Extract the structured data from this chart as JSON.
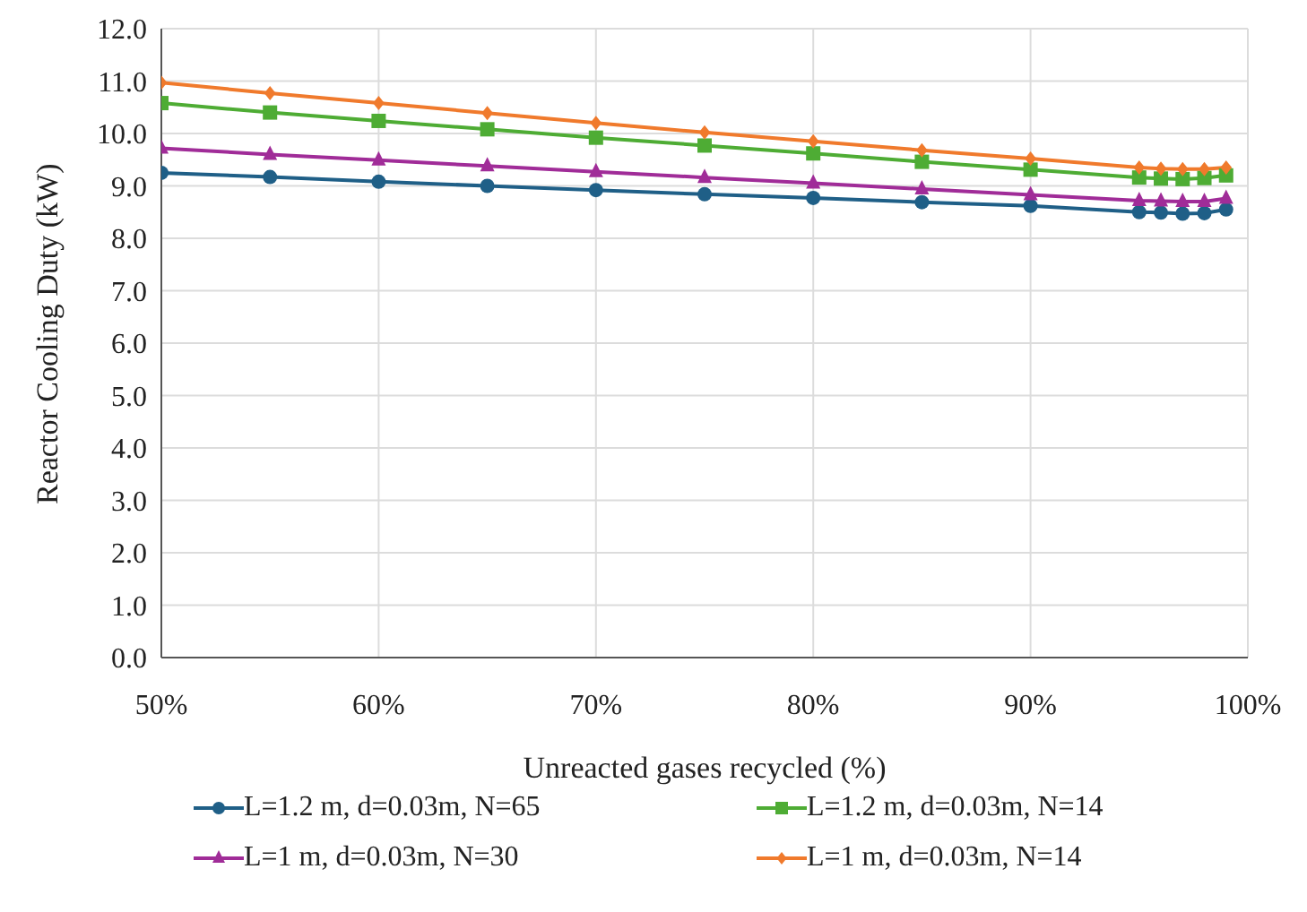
{
  "chart_data": {
    "type": "line",
    "xlabel": "Unreacted gases recycled (%)",
    "ylabel": "Reactor Cooling Duty (kW)",
    "x": [
      50,
      55,
      60,
      65,
      70,
      75,
      80,
      85,
      90,
      95,
      96,
      97,
      98,
      99
    ],
    "series": [
      {
        "name": "L=1.2 m, d=0.03m, N=65",
        "color": "#1f5f87",
        "marker": "circle",
        "values": [
          9.25,
          9.17,
          9.08,
          9.0,
          8.92,
          8.84,
          8.77,
          8.69,
          8.62,
          8.5,
          8.49,
          8.47,
          8.48,
          8.55
        ]
      },
      {
        "name": "L=1.2 m, d=0.03m, N=14",
        "color": "#4eac34",
        "marker": "square",
        "values": [
          10.58,
          10.4,
          10.24,
          10.08,
          9.92,
          9.77,
          9.62,
          9.46,
          9.31,
          9.16,
          9.14,
          9.13,
          9.15,
          9.2
        ]
      },
      {
        "name": "L=1 m, d=0.03m, N=30",
        "color": "#a02c98",
        "marker": "triangle",
        "values": [
          9.72,
          9.6,
          9.49,
          9.38,
          9.27,
          9.16,
          9.05,
          8.94,
          8.83,
          8.72,
          8.71,
          8.7,
          8.7,
          8.76
        ]
      },
      {
        "name": "L=1 m, d=0.03m, N=14",
        "color": "#f07a2c",
        "marker": "diamond",
        "values": [
          10.97,
          10.77,
          10.58,
          10.39,
          10.2,
          10.02,
          9.85,
          9.68,
          9.52,
          9.35,
          9.33,
          9.32,
          9.32,
          9.35
        ]
      }
    ],
    "xlim": [
      50,
      100
    ],
    "xticks": [
      {
        "value": 50,
        "label": "50%"
      },
      {
        "value": 60,
        "label": "60%"
      },
      {
        "value": 70,
        "label": "70%"
      },
      {
        "value": 80,
        "label": "80%"
      },
      {
        "value": 90,
        "label": "90%"
      },
      {
        "value": 100,
        "label": "100%"
      }
    ],
    "ylim": [
      0,
      12
    ],
    "yticks": [
      {
        "value": 0,
        "label": "0.0"
      },
      {
        "value": 1,
        "label": "1.0"
      },
      {
        "value": 2,
        "label": "2.0"
      },
      {
        "value": 3,
        "label": "3.0"
      },
      {
        "value": 4,
        "label": "4.0"
      },
      {
        "value": 5,
        "label": "5.0"
      },
      {
        "value": 6,
        "label": "6.0"
      },
      {
        "value": 7,
        "label": "7.0"
      },
      {
        "value": 8,
        "label": "8.0"
      },
      {
        "value": 9,
        "label": "9.0"
      },
      {
        "value": 10,
        "label": "10.0"
      },
      {
        "value": 11,
        "label": "11.0"
      },
      {
        "value": 12,
        "label": "12.0"
      }
    ],
    "grid": true,
    "legend": "bottom",
    "line_style": "solid"
  }
}
